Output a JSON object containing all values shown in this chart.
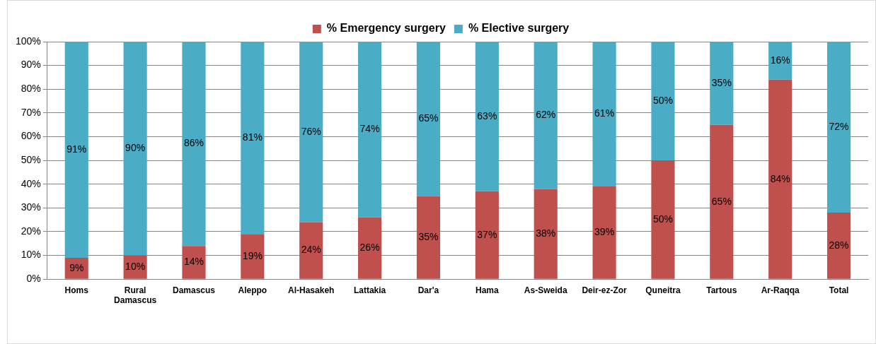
{
  "chart_data": {
    "type": "bar",
    "stacked": true,
    "legend": "top",
    "grid": "y",
    "categories": [
      "Homs",
      "Rural Damascus",
      "Damascus",
      "Aleppo",
      "Al-Hasakeh",
      "Lattakia",
      "Dar'a",
      "Hama",
      "As-Sweida",
      "Deir-ez-Zor",
      "Quneitra",
      "Tartous",
      "Ar-Raqqa",
      "Total"
    ],
    "series": [
      {
        "name": "% Emergency surgery",
        "color": "#c0504d",
        "values": [
          9,
          10,
          14,
          19,
          24,
          26,
          35,
          37,
          38,
          39,
          50,
          65,
          84,
          28
        ],
        "value_labels": [
          "9%",
          "10%",
          "14%",
          "19%",
          "24%",
          "26%",
          "35%",
          "37%",
          "38%",
          "39%",
          "50%",
          "65%",
          "84%",
          "28%"
        ]
      },
      {
        "name": "% Elective surgery",
        "color": "#4bacc6",
        "values": [
          91,
          90,
          86,
          81,
          76,
          74,
          65,
          63,
          62,
          61,
          50,
          35,
          16,
          72
        ],
        "value_labels": [
          "91%",
          "90%",
          "86%",
          "81%",
          "76%",
          "74%",
          "65%",
          "63%",
          "62%",
          "61%",
          "50%",
          "35%",
          "16%",
          "72%"
        ]
      }
    ],
    "ylim": [
      0,
      100
    ],
    "yticks": [
      {
        "value": 0,
        "label": "0%"
      },
      {
        "value": 10,
        "label": "10%"
      },
      {
        "value": 20,
        "label": "20%"
      },
      {
        "value": 30,
        "label": "30%"
      },
      {
        "value": 40,
        "label": "40%"
      },
      {
        "value": 50,
        "label": "50%"
      },
      {
        "value": 60,
        "label": "60%"
      },
      {
        "value": 70,
        "label": "70%"
      },
      {
        "value": 80,
        "label": "80%"
      },
      {
        "value": 90,
        "label": "90%"
      },
      {
        "value": 100,
        "label": "100%"
      }
    ]
  }
}
